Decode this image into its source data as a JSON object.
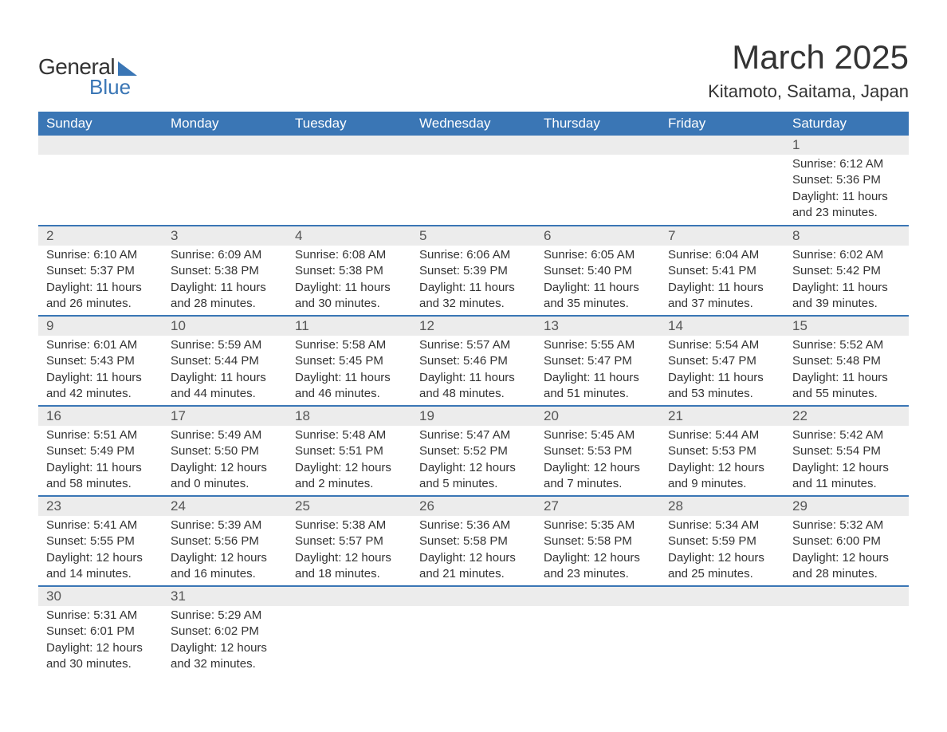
{
  "brand": {
    "word1": "General",
    "word2": "Blue",
    "accent_color": "#3a76b5"
  },
  "title": {
    "month": "March 2025",
    "location": "Kitamoto, Saitama, Japan"
  },
  "table": {
    "type": "calendar",
    "columns": [
      "Sunday",
      "Monday",
      "Tuesday",
      "Wednesday",
      "Thursday",
      "Friday",
      "Saturday"
    ],
    "header_bg": "#3a76b5",
    "header_fg": "#ffffff",
    "daynum_bg": "#ececec",
    "row_border_color": "#3a76b5",
    "text_color": "#333333",
    "fontsize_header": 17,
    "fontsize_daynum": 17,
    "fontsize_details": 15,
    "weeks": [
      [
        null,
        null,
        null,
        null,
        null,
        null,
        {
          "n": "1",
          "sunrise": "6:12 AM",
          "sunset": "5:36 PM",
          "dl_h": 11,
          "dl_m": 23
        }
      ],
      [
        {
          "n": "2",
          "sunrise": "6:10 AM",
          "sunset": "5:37 PM",
          "dl_h": 11,
          "dl_m": 26
        },
        {
          "n": "3",
          "sunrise": "6:09 AM",
          "sunset": "5:38 PM",
          "dl_h": 11,
          "dl_m": 28
        },
        {
          "n": "4",
          "sunrise": "6:08 AM",
          "sunset": "5:38 PM",
          "dl_h": 11,
          "dl_m": 30
        },
        {
          "n": "5",
          "sunrise": "6:06 AM",
          "sunset": "5:39 PM",
          "dl_h": 11,
          "dl_m": 32
        },
        {
          "n": "6",
          "sunrise": "6:05 AM",
          "sunset": "5:40 PM",
          "dl_h": 11,
          "dl_m": 35
        },
        {
          "n": "7",
          "sunrise": "6:04 AM",
          "sunset": "5:41 PM",
          "dl_h": 11,
          "dl_m": 37
        },
        {
          "n": "8",
          "sunrise": "6:02 AM",
          "sunset": "5:42 PM",
          "dl_h": 11,
          "dl_m": 39
        }
      ],
      [
        {
          "n": "9",
          "sunrise": "6:01 AM",
          "sunset": "5:43 PM",
          "dl_h": 11,
          "dl_m": 42
        },
        {
          "n": "10",
          "sunrise": "5:59 AM",
          "sunset": "5:44 PM",
          "dl_h": 11,
          "dl_m": 44
        },
        {
          "n": "11",
          "sunrise": "5:58 AM",
          "sunset": "5:45 PM",
          "dl_h": 11,
          "dl_m": 46
        },
        {
          "n": "12",
          "sunrise": "5:57 AM",
          "sunset": "5:46 PM",
          "dl_h": 11,
          "dl_m": 48
        },
        {
          "n": "13",
          "sunrise": "5:55 AM",
          "sunset": "5:47 PM",
          "dl_h": 11,
          "dl_m": 51
        },
        {
          "n": "14",
          "sunrise": "5:54 AM",
          "sunset": "5:47 PM",
          "dl_h": 11,
          "dl_m": 53
        },
        {
          "n": "15",
          "sunrise": "5:52 AM",
          "sunset": "5:48 PM",
          "dl_h": 11,
          "dl_m": 55
        }
      ],
      [
        {
          "n": "16",
          "sunrise": "5:51 AM",
          "sunset": "5:49 PM",
          "dl_h": 11,
          "dl_m": 58
        },
        {
          "n": "17",
          "sunrise": "5:49 AM",
          "sunset": "5:50 PM",
          "dl_h": 12,
          "dl_m": 0
        },
        {
          "n": "18",
          "sunrise": "5:48 AM",
          "sunset": "5:51 PM",
          "dl_h": 12,
          "dl_m": 2
        },
        {
          "n": "19",
          "sunrise": "5:47 AM",
          "sunset": "5:52 PM",
          "dl_h": 12,
          "dl_m": 5
        },
        {
          "n": "20",
          "sunrise": "5:45 AM",
          "sunset": "5:53 PM",
          "dl_h": 12,
          "dl_m": 7
        },
        {
          "n": "21",
          "sunrise": "5:44 AM",
          "sunset": "5:53 PM",
          "dl_h": 12,
          "dl_m": 9
        },
        {
          "n": "22",
          "sunrise": "5:42 AM",
          "sunset": "5:54 PM",
          "dl_h": 12,
          "dl_m": 11
        }
      ],
      [
        {
          "n": "23",
          "sunrise": "5:41 AM",
          "sunset": "5:55 PM",
          "dl_h": 12,
          "dl_m": 14
        },
        {
          "n": "24",
          "sunrise": "5:39 AM",
          "sunset": "5:56 PM",
          "dl_h": 12,
          "dl_m": 16
        },
        {
          "n": "25",
          "sunrise": "5:38 AM",
          "sunset": "5:57 PM",
          "dl_h": 12,
          "dl_m": 18
        },
        {
          "n": "26",
          "sunrise": "5:36 AM",
          "sunset": "5:58 PM",
          "dl_h": 12,
          "dl_m": 21
        },
        {
          "n": "27",
          "sunrise": "5:35 AM",
          "sunset": "5:58 PM",
          "dl_h": 12,
          "dl_m": 23
        },
        {
          "n": "28",
          "sunrise": "5:34 AM",
          "sunset": "5:59 PM",
          "dl_h": 12,
          "dl_m": 25
        },
        {
          "n": "29",
          "sunrise": "5:32 AM",
          "sunset": "6:00 PM",
          "dl_h": 12,
          "dl_m": 28
        }
      ],
      [
        {
          "n": "30",
          "sunrise": "5:31 AM",
          "sunset": "6:01 PM",
          "dl_h": 12,
          "dl_m": 30
        },
        {
          "n": "31",
          "sunrise": "5:29 AM",
          "sunset": "6:02 PM",
          "dl_h": 12,
          "dl_m": 32
        },
        null,
        null,
        null,
        null,
        null
      ]
    ],
    "labels": {
      "sunrise": "Sunrise:",
      "sunset": "Sunset:",
      "daylight_prefix": "Daylight:",
      "hours_word": "hours",
      "and_word": "and",
      "minutes_word": "minutes."
    }
  }
}
